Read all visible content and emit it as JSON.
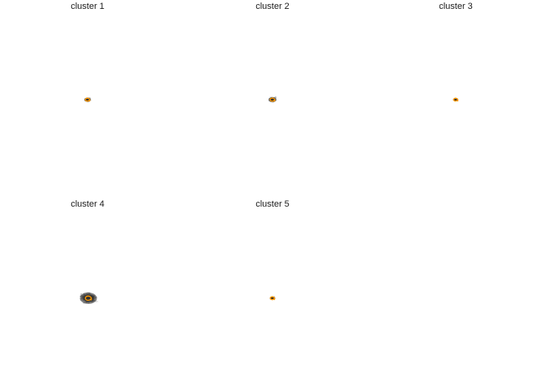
{
  "chart_data": [
    {
      "type": "scatter",
      "title": "cluster 1",
      "accent_color": "#ff9900",
      "trace_color": "#333333",
      "spread": 1.0
    },
    {
      "type": "scatter",
      "title": "cluster 2",
      "accent_color": "#ff9900",
      "trace_color": "#333333",
      "spread": 1.2
    },
    {
      "type": "scatter",
      "title": "cluster 3",
      "accent_color": "#ff9900",
      "trace_color": "#333333",
      "spread": 0.7
    },
    {
      "type": "scatter",
      "title": "cluster 4",
      "accent_color": "#ff9900",
      "trace_color": "#333333",
      "spread": 2.6
    },
    {
      "type": "scatter",
      "title": "cluster 5",
      "accent_color": "#ff9900",
      "trace_color": "#333333",
      "spread": 0.8
    }
  ]
}
